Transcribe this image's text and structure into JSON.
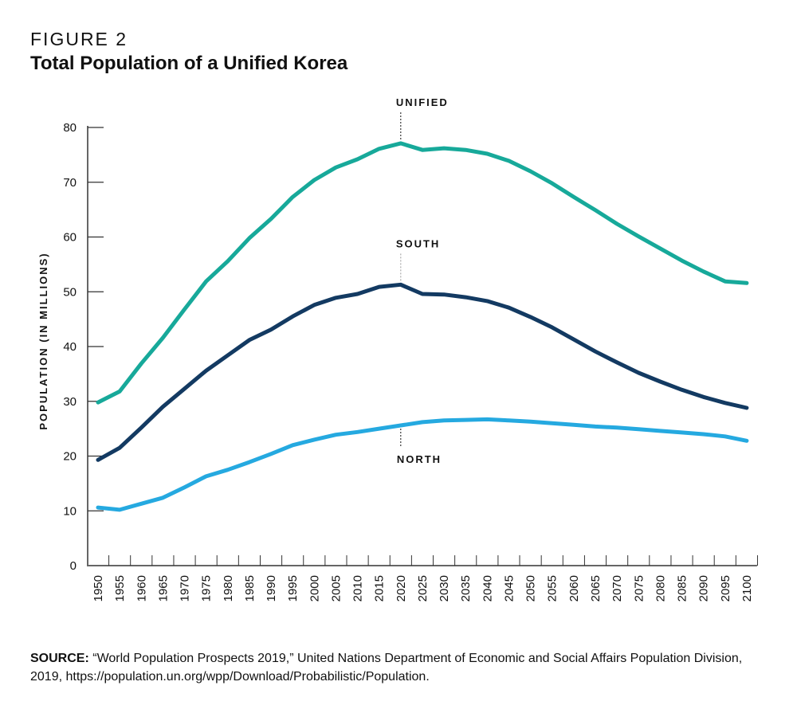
{
  "header": {
    "figure_label": "FIGURE 2",
    "title": "Total Population of a Unified Korea"
  },
  "source": {
    "label": "SOURCE:",
    "text": "“World Population Prospects 2019,” United Nations Department of Economic and Social Affairs Population Division, 2019, https://population.un.org/wpp/Download/Probabilistic/Population."
  },
  "chart_data": {
    "type": "line",
    "title": "Total Population of a Unified Korea",
    "xlabel": "",
    "ylabel": "POPULATION (IN MILLIONS)",
    "ylim": [
      0,
      80
    ],
    "yticks": [
      0,
      10,
      20,
      30,
      40,
      50,
      60,
      70,
      80
    ],
    "x": [
      1950,
      1955,
      1960,
      1965,
      1970,
      1975,
      1980,
      1985,
      1990,
      1995,
      2000,
      2005,
      2010,
      2015,
      2020,
      2025,
      2030,
      2035,
      2040,
      2045,
      2050,
      2055,
      2060,
      2065,
      2070,
      2075,
      2080,
      2085,
      2090,
      2095,
      2100
    ],
    "grid": false,
    "series": [
      {
        "name": "UNIFIED",
        "color": "#17a99a",
        "label_year": 2020,
        "label_pos": "above",
        "values": [
          29.8,
          31.8,
          36.9,
          41.6,
          46.8,
          51.9,
          55.6,
          59.8,
          63.3,
          67.3,
          70.4,
          72.7,
          74.2,
          76.1,
          77.1,
          75.9,
          76.2,
          75.9,
          75.2,
          73.9,
          72.0,
          69.8,
          67.3,
          64.9,
          62.4,
          60.1,
          57.9,
          55.7,
          53.7,
          51.9,
          51.6
        ]
      },
      {
        "name": "SOUTH",
        "color": "#133a62",
        "label_year": 2020,
        "label_pos": "above",
        "values": [
          19.3,
          21.5,
          25.2,
          29.0,
          32.3,
          35.6,
          38.4,
          41.2,
          43.1,
          45.5,
          47.6,
          48.9,
          49.6,
          50.9,
          51.3,
          49.6,
          49.5,
          49.0,
          48.3,
          47.1,
          45.4,
          43.5,
          41.3,
          39.1,
          37.1,
          35.2,
          33.6,
          32.1,
          30.8,
          29.7,
          28.8
        ]
      },
      {
        "name": "NORTH",
        "color": "#25a9e0",
        "label_year": 2020,
        "label_pos": "below",
        "values": [
          10.6,
          10.2,
          11.3,
          12.4,
          14.3,
          16.3,
          17.5,
          18.9,
          20.4,
          22.0,
          23.0,
          23.9,
          24.4,
          25.0,
          25.6,
          26.2,
          26.5,
          26.6,
          26.7,
          26.5,
          26.3,
          26.0,
          25.7,
          25.4,
          25.2,
          24.9,
          24.6,
          24.3,
          24.0,
          23.6,
          22.8
        ]
      }
    ]
  }
}
